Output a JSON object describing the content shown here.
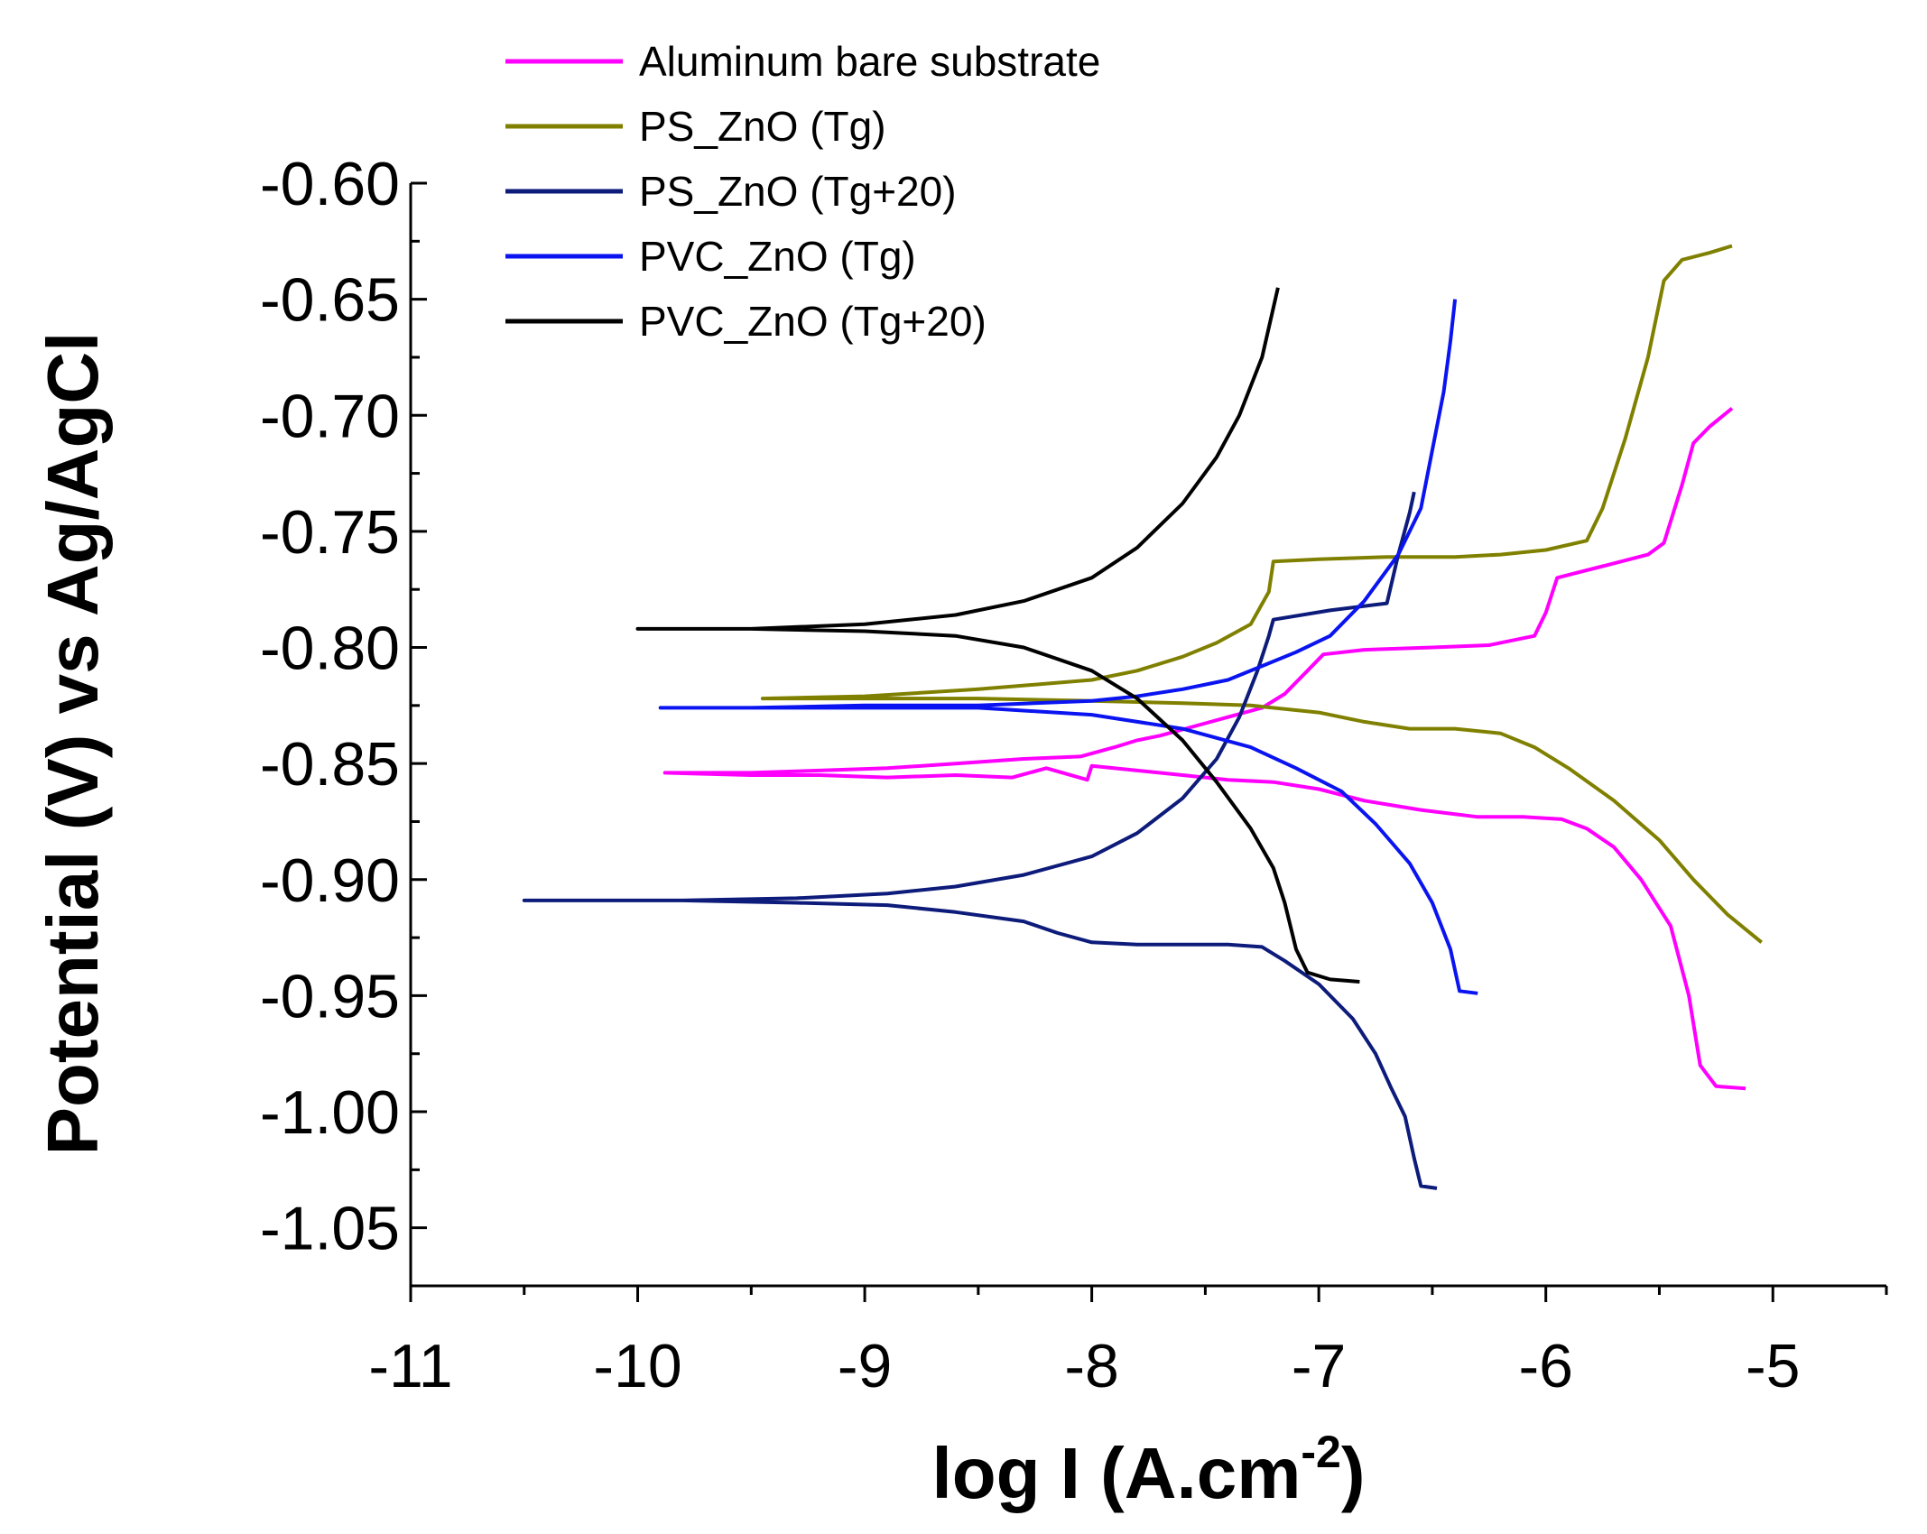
{
  "chart_data": {
    "type": "line",
    "xlabel": "log I (A.cm",
    "xlabel_sup": "-2",
    "xlabel_close": ")",
    "ylabel": "Potential (V) vs Ag/AgCl",
    "xlim": [
      -11,
      -4.5
    ],
    "ylim": [
      -1.075,
      -0.6
    ],
    "xticks": [
      -11,
      -10,
      -9,
      -8,
      -7,
      -6,
      -5
    ],
    "xtick_labels": [
      "-11",
      "-10",
      "-9",
      "-8",
      "-7",
      "-6",
      "-5"
    ],
    "yticks": [
      -0.6,
      -0.65,
      -0.7,
      -0.75,
      -0.8,
      -0.85,
      -0.9,
      -0.95,
      -1.0,
      -1.05
    ],
    "ytick_labels": [
      "-0.60",
      "-0.65",
      "-0.70",
      "-0.75",
      "-0.80",
      "-0.85",
      "-0.90",
      "-0.95",
      "-1.00",
      "-1.05"
    ],
    "grid": false,
    "legend_position": "top-left",
    "series": [
      {
        "name": "Aluminum bare substrate",
        "color": "#ff00ff",
        "points": [
          [
            -5.12,
            -0.99
          ],
          [
            -5.25,
            -0.989
          ],
          [
            -5.32,
            -0.98
          ],
          [
            -5.37,
            -0.95
          ],
          [
            -5.45,
            -0.92
          ],
          [
            -5.58,
            -0.9
          ],
          [
            -5.7,
            -0.886
          ],
          [
            -5.82,
            -0.878
          ],
          [
            -5.93,
            -0.874
          ],
          [
            -6.1,
            -0.873
          ],
          [
            -6.3,
            -0.873
          ],
          [
            -6.55,
            -0.87
          ],
          [
            -6.8,
            -0.866
          ],
          [
            -7.0,
            -0.861
          ],
          [
            -7.2,
            -0.858
          ],
          [
            -7.4,
            -0.857
          ],
          [
            -7.6,
            -0.855
          ],
          [
            -7.8,
            -0.853
          ],
          [
            -8.0,
            -0.851
          ],
          [
            -8.02,
            -0.857
          ],
          [
            -8.2,
            -0.852
          ],
          [
            -8.35,
            -0.856
          ],
          [
            -8.6,
            -0.855
          ],
          [
            -8.9,
            -0.856
          ],
          [
            -9.2,
            -0.855
          ],
          [
            -9.5,
            -0.855
          ],
          [
            -9.88,
            -0.854
          ],
          [
            -9.5,
            -0.854
          ],
          [
            -9.2,
            -0.853
          ],
          [
            -8.9,
            -0.852
          ],
          [
            -8.6,
            -0.85
          ],
          [
            -8.3,
            -0.848
          ],
          [
            -8.05,
            -0.847
          ],
          [
            -7.9,
            -0.843
          ],
          [
            -7.8,
            -0.84
          ],
          [
            -7.7,
            -0.838
          ],
          [
            -7.55,
            -0.834
          ],
          [
            -7.4,
            -0.83
          ],
          [
            -7.25,
            -0.826
          ],
          [
            -7.15,
            -0.82
          ],
          [
            -7.05,
            -0.81
          ],
          [
            -6.98,
            -0.803
          ],
          [
            -6.8,
            -0.801
          ],
          [
            -6.5,
            -0.8
          ],
          [
            -6.25,
            -0.799
          ],
          [
            -6.05,
            -0.795
          ],
          [
            -6.0,
            -0.785
          ],
          [
            -5.95,
            -0.77
          ],
          [
            -5.75,
            -0.765
          ],
          [
            -5.55,
            -0.76
          ],
          [
            -5.48,
            -0.755
          ],
          [
            -5.4,
            -0.73
          ],
          [
            -5.35,
            -0.712
          ],
          [
            -5.28,
            -0.705
          ],
          [
            -5.18,
            -0.697
          ]
        ]
      },
      {
        "name": "PS_ZnO (Tg)",
        "color": "#808000",
        "points": [
          [
            -5.05,
            -0.927
          ],
          [
            -5.2,
            -0.915
          ],
          [
            -5.35,
            -0.9
          ],
          [
            -5.5,
            -0.883
          ],
          [
            -5.7,
            -0.866
          ],
          [
            -5.9,
            -0.852
          ],
          [
            -6.05,
            -0.843
          ],
          [
            -6.2,
            -0.837
          ],
          [
            -6.4,
            -0.835
          ],
          [
            -6.6,
            -0.835
          ],
          [
            -6.8,
            -0.832
          ],
          [
            -7.0,
            -0.828
          ],
          [
            -7.3,
            -0.825
          ],
          [
            -7.6,
            -0.824
          ],
          [
            -8.0,
            -0.823
          ],
          [
            -8.5,
            -0.822
          ],
          [
            -9.0,
            -0.822
          ],
          [
            -9.45,
            -0.822
          ],
          [
            -9.0,
            -0.821
          ],
          [
            -8.5,
            -0.818
          ],
          [
            -8.0,
            -0.814
          ],
          [
            -7.8,
            -0.81
          ],
          [
            -7.6,
            -0.804
          ],
          [
            -7.45,
            -0.798
          ],
          [
            -7.3,
            -0.79
          ],
          [
            -7.22,
            -0.776
          ],
          [
            -7.2,
            -0.763
          ],
          [
            -7.0,
            -0.762
          ],
          [
            -6.7,
            -0.761
          ],
          [
            -6.4,
            -0.761
          ],
          [
            -6.2,
            -0.76
          ],
          [
            -6.0,
            -0.758
          ],
          [
            -5.82,
            -0.754
          ],
          [
            -5.75,
            -0.74
          ],
          [
            -5.65,
            -0.71
          ],
          [
            -5.55,
            -0.675
          ],
          [
            -5.48,
            -0.642
          ],
          [
            -5.4,
            -0.633
          ],
          [
            -5.28,
            -0.63
          ],
          [
            -5.18,
            -0.627
          ]
        ]
      },
      {
        "name": "PS_ZnO (Tg+20)",
        "color": "#0d1b7a",
        "points": [
          [
            -6.48,
            -1.033
          ],
          [
            -6.55,
            -1.032
          ],
          [
            -6.58,
            -1.02
          ],
          [
            -6.62,
            -1.002
          ],
          [
            -6.68,
            -0.99
          ],
          [
            -6.75,
            -0.975
          ],
          [
            -6.85,
            -0.96
          ],
          [
            -7.0,
            -0.945
          ],
          [
            -7.15,
            -0.935
          ],
          [
            -7.25,
            -0.929
          ],
          [
            -7.4,
            -0.928
          ],
          [
            -7.6,
            -0.928
          ],
          [
            -7.8,
            -0.928
          ],
          [
            -8.0,
            -0.927
          ],
          [
            -8.15,
            -0.923
          ],
          [
            -8.3,
            -0.918
          ],
          [
            -8.6,
            -0.914
          ],
          [
            -8.9,
            -0.911
          ],
          [
            -9.3,
            -0.91
          ],
          [
            -9.8,
            -0.909
          ],
          [
            -10.5,
            -0.909
          ],
          [
            -9.8,
            -0.909
          ],
          [
            -9.3,
            -0.908
          ],
          [
            -8.9,
            -0.906
          ],
          [
            -8.6,
            -0.903
          ],
          [
            -8.3,
            -0.898
          ],
          [
            -8.0,
            -0.89
          ],
          [
            -7.8,
            -0.88
          ],
          [
            -7.6,
            -0.865
          ],
          [
            -7.45,
            -0.848
          ],
          [
            -7.35,
            -0.83
          ],
          [
            -7.27,
            -0.81
          ],
          [
            -7.22,
            -0.795
          ],
          [
            -7.2,
            -0.788
          ],
          [
            -6.95,
            -0.784
          ],
          [
            -6.7,
            -0.781
          ],
          [
            -6.65,
            -0.76
          ],
          [
            -6.6,
            -0.742
          ],
          [
            -6.58,
            -0.733
          ]
        ]
      },
      {
        "name": "PVC_ZnO (Tg)",
        "color": "#0a14f0",
        "points": [
          [
            -6.3,
            -0.949
          ],
          [
            -6.38,
            -0.948
          ],
          [
            -6.42,
            -0.93
          ],
          [
            -6.5,
            -0.91
          ],
          [
            -6.6,
            -0.893
          ],
          [
            -6.75,
            -0.876
          ],
          [
            -6.9,
            -0.862
          ],
          [
            -7.1,
            -0.852
          ],
          [
            -7.3,
            -0.843
          ],
          [
            -7.6,
            -0.835
          ],
          [
            -8.0,
            -0.829
          ],
          [
            -8.5,
            -0.826
          ],
          [
            -9.0,
            -0.826
          ],
          [
            -9.5,
            -0.826
          ],
          [
            -9.9,
            -0.826
          ],
          [
            -9.5,
            -0.826
          ],
          [
            -9.0,
            -0.825
          ],
          [
            -8.5,
            -0.825
          ],
          [
            -8.0,
            -0.823
          ],
          [
            -7.8,
            -0.821
          ],
          [
            -7.6,
            -0.818
          ],
          [
            -7.4,
            -0.814
          ],
          [
            -7.25,
            -0.808
          ],
          [
            -7.1,
            -0.802
          ],
          [
            -6.95,
            -0.795
          ],
          [
            -6.8,
            -0.78
          ],
          [
            -6.65,
            -0.76
          ],
          [
            -6.55,
            -0.74
          ],
          [
            -6.5,
            -0.715
          ],
          [
            -6.45,
            -0.69
          ],
          [
            -6.42,
            -0.668
          ],
          [
            -6.4,
            -0.65
          ]
        ]
      },
      {
        "name": "PVC_ZnO (Tg+20)",
        "color": "#000000",
        "points": [
          [
            -6.82,
            -0.944
          ],
          [
            -6.95,
            -0.943
          ],
          [
            -7.05,
            -0.94
          ],
          [
            -7.1,
            -0.93
          ],
          [
            -7.15,
            -0.91
          ],
          [
            -7.2,
            -0.895
          ],
          [
            -7.3,
            -0.878
          ],
          [
            -7.45,
            -0.858
          ],
          [
            -7.6,
            -0.84
          ],
          [
            -7.8,
            -0.822
          ],
          [
            -8.0,
            -0.81
          ],
          [
            -8.3,
            -0.8
          ],
          [
            -8.6,
            -0.795
          ],
          [
            -9.0,
            -0.793
          ],
          [
            -9.5,
            -0.792
          ],
          [
            -10.0,
            -0.792
          ],
          [
            -9.5,
            -0.792
          ],
          [
            -9.0,
            -0.79
          ],
          [
            -8.6,
            -0.786
          ],
          [
            -8.3,
            -0.78
          ],
          [
            -8.0,
            -0.77
          ],
          [
            -7.8,
            -0.757
          ],
          [
            -7.6,
            -0.738
          ],
          [
            -7.45,
            -0.718
          ],
          [
            -7.35,
            -0.7
          ],
          [
            -7.25,
            -0.675
          ],
          [
            -7.18,
            -0.645
          ]
        ]
      }
    ]
  }
}
